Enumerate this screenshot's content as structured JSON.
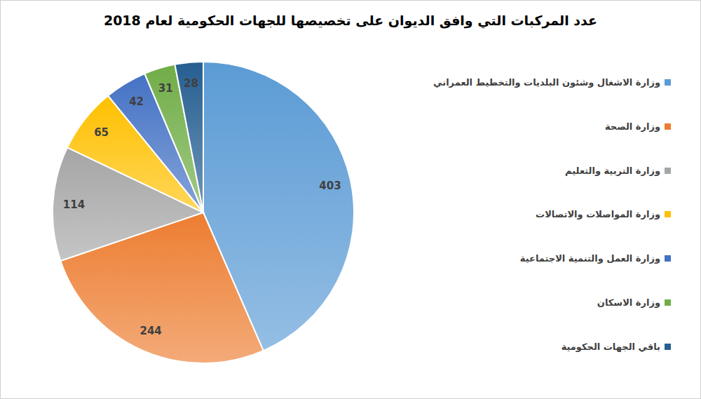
{
  "chart_data": {
    "type": "pie",
    "title": "عدد المركبات التي وافق الديوان على تخصيصها للجهات الحكومية لعام 2018",
    "categories": [
      "وزارة الاشغال وشئون البلديات والتخطيط العمراني",
      "وزارة الصحة",
      "وزارة التربية والتعليم",
      "وزارة المواصلات والاتصالات",
      "وزارة العمل والتنمية الاجتماعية",
      "وزارة الاسكان",
      "باقي الجهات الحكومية"
    ],
    "values": [
      403,
      244,
      114,
      65,
      42,
      31,
      28
    ],
    "colors": [
      "#5b9bd5",
      "#ed7d31",
      "#a5a5a5",
      "#ffc000",
      "#4472c4",
      "#70ad47",
      "#255e91"
    ],
    "data_labels": true,
    "legend": "right"
  }
}
